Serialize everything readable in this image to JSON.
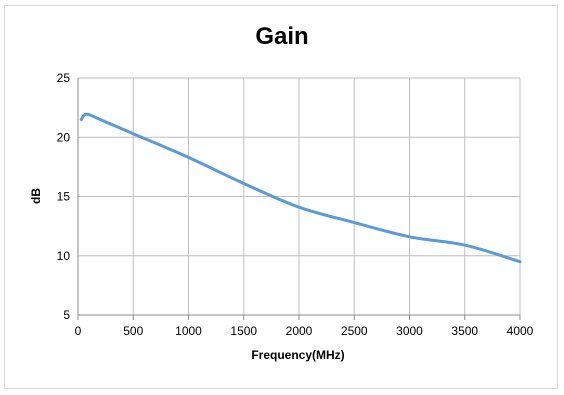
{
  "chart_data": {
    "type": "line",
    "title": "Gain",
    "xlabel": "Frequency(MHz)",
    "ylabel": "dB",
    "xlim": [
      0,
      4000
    ],
    "ylim": [
      5,
      25
    ],
    "xticks": [
      0,
      500,
      1000,
      1500,
      2000,
      2500,
      3000,
      3500,
      4000
    ],
    "yticks": [
      5,
      10,
      15,
      20,
      25
    ],
    "grid": true,
    "series": [
      {
        "color": "#5b9bd5",
        "x": [
          30,
          60,
          100,
          200,
          500,
          1000,
          1500,
          2000,
          2500,
          3000,
          3500,
          4000
        ],
        "y": [
          21.5,
          21.9,
          21.9,
          21.5,
          20.3,
          18.3,
          16.1,
          14.1,
          12.8,
          11.6,
          10.9,
          9.5
        ]
      }
    ]
  }
}
